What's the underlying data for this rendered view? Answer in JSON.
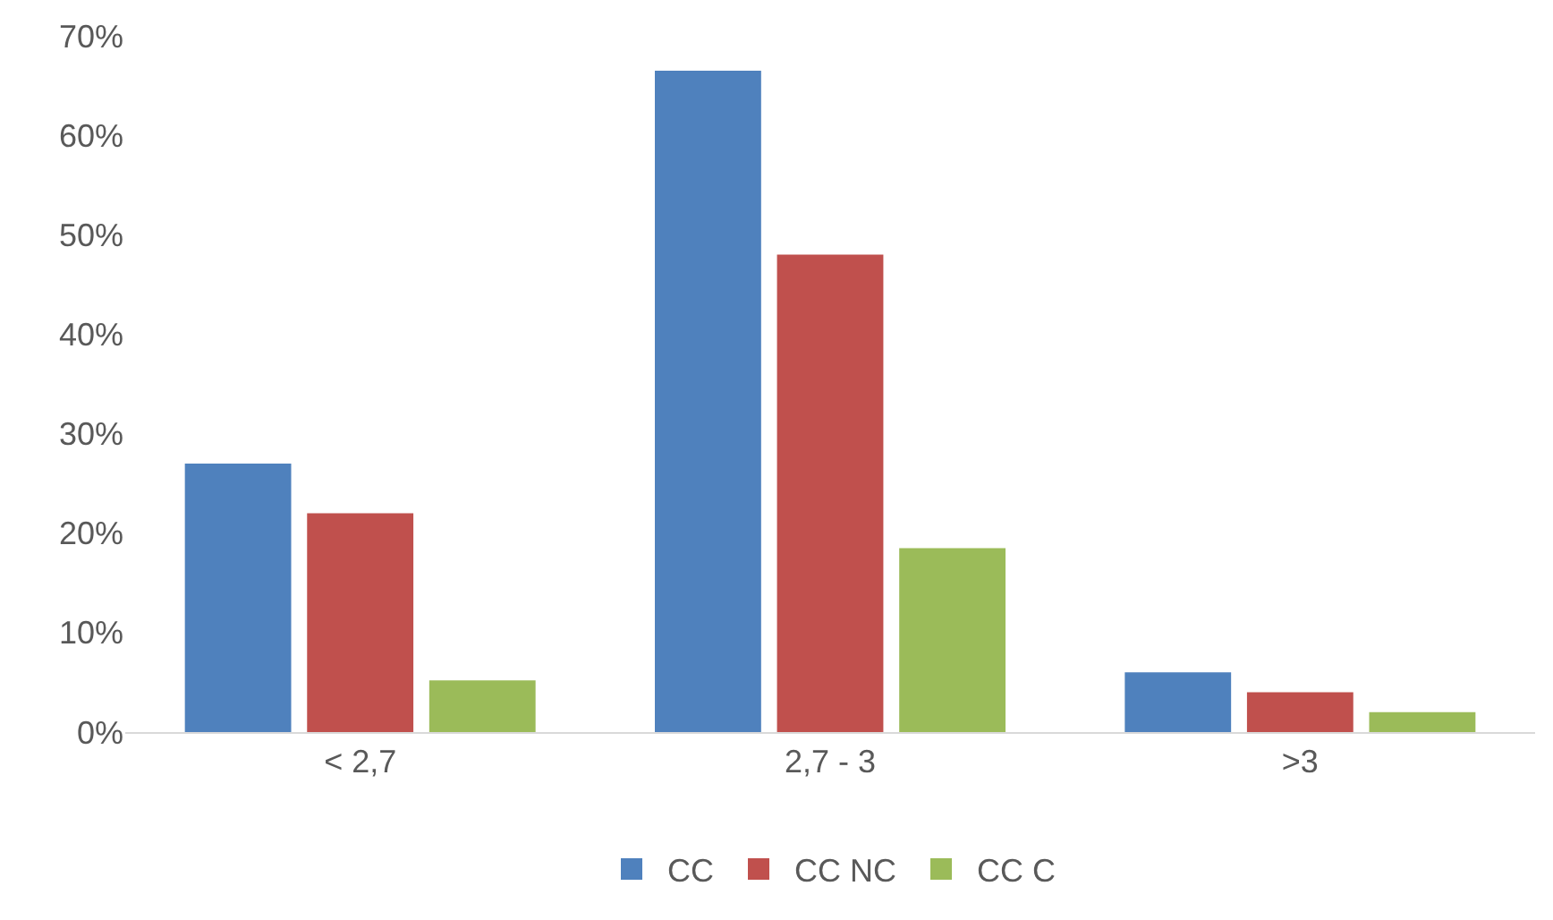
{
  "chart_data": {
    "type": "bar",
    "categories": [
      "< 2,7",
      "2,7 - 3",
      ">3"
    ],
    "series": [
      {
        "name": "CC",
        "color": "#4f81bd",
        "values": [
          27,
          66.5,
          6
        ]
      },
      {
        "name": "CC NC",
        "color": "#c0504d",
        "values": [
          22,
          48,
          4
        ]
      },
      {
        "name": "CC C",
        "color": "#9bbb59",
        "values": [
          5.2,
          18.5,
          2
        ]
      }
    ],
    "ylim": [
      0,
      70
    ],
    "yticks": [
      {
        "value": 0,
        "label": "0%"
      },
      {
        "value": 10,
        "label": "10%"
      },
      {
        "value": 20,
        "label": "20%"
      },
      {
        "value": 30,
        "label": "30%"
      },
      {
        "value": 40,
        "label": "40%"
      },
      {
        "value": 50,
        "label": "50%"
      },
      {
        "value": 60,
        "label": "60%"
      },
      {
        "value": 70,
        "label": "70%"
      }
    ],
    "grid": false,
    "legend": "bottom"
  }
}
